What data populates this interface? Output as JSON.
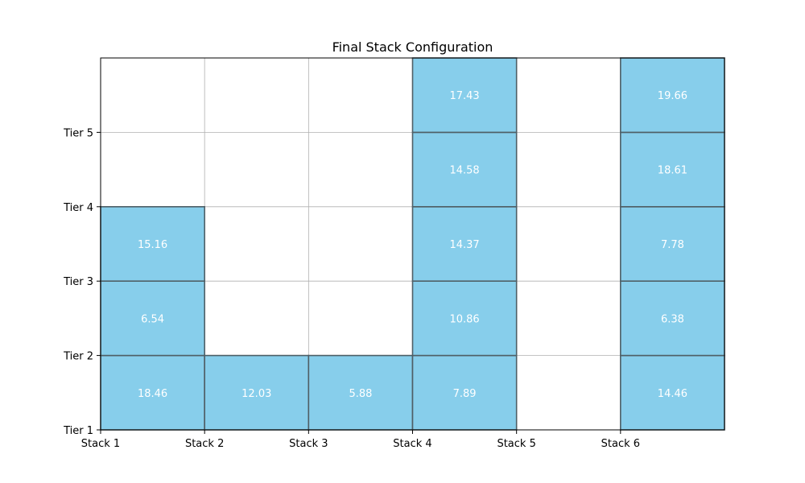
{
  "chart_data": {
    "type": "heatmap",
    "title": "Final Stack Configuration",
    "xlabel": "",
    "ylabel": "",
    "x_tick_labels": [
      "Stack 1",
      "Stack 2",
      "Stack 3",
      "Stack 4",
      "Stack 5",
      "Stack 6"
    ],
    "y_tick_labels": [
      "Tier 1",
      "Tier 2",
      "Tier 3",
      "Tier 4",
      "Tier 5"
    ],
    "xlim": [
      0,
      6
    ],
    "ylim": [
      0,
      5
    ],
    "grid": true,
    "colors": {
      "block_fill": "#87ceeb",
      "block_edge": "#4f5f66",
      "grid": "#b0b0b0",
      "block_label": "#ffffff"
    },
    "stacks": [
      {
        "stack": "Stack 1",
        "values": [
          18.46,
          6.54,
          15.16
        ]
      },
      {
        "stack": "Stack 2",
        "values": [
          12.03
        ]
      },
      {
        "stack": "Stack 3",
        "values": [
          5.88
        ]
      },
      {
        "stack": "Stack 4",
        "values": [
          7.89,
          10.86,
          14.37,
          14.58,
          17.43
        ]
      },
      {
        "stack": "Stack 5",
        "values": []
      },
      {
        "stack": "Stack 6",
        "values": [
          14.46,
          6.38,
          7.78,
          18.61,
          19.66
        ]
      }
    ]
  }
}
